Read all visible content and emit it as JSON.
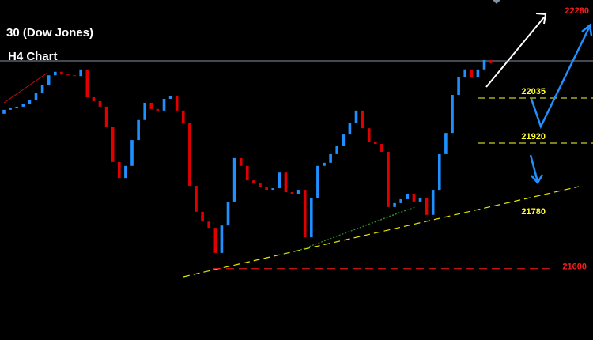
{
  "chart_data": {
    "type": "candlestick",
    "title": "30 (Dow Jones)",
    "subtitle": "H4 Chart",
    "ylim": [
      21418,
      22285
    ],
    "up_color": "#1e90ff",
    "down_color": "#e00000",
    "open": [
      21995,
      22005,
      22009,
      22013,
      22019,
      22029,
      22047,
      22069,
      22093,
      22102,
      22095,
      22093,
      22091,
      22108,
      22037,
      22027,
      22013,
      21962,
      21872,
      21831,
      21862,
      21928,
      21979,
      22023,
      22007,
      22003,
      22033,
      22040,
      22003,
      21972,
      21811,
      21745,
      21720,
      21704,
      21640,
      21710,
      21771,
      21882,
      21862,
      21825,
      21817,
      21809,
      21801,
      21805,
      21845,
      21795,
      21791,
      21801,
      21680,
      21781,
      21862,
      21870,
      21892,
      21912,
      21942,
      21972,
      22003,
      21958,
      21922,
      21918,
      21898,
      21757,
      21767,
      21777,
      21791,
      21771,
      21781,
      21737,
      21801,
      21892,
      21946,
      22043,
      22089,
      22108,
      22089,
      22108,
      22132
    ],
    "close": [
      22005,
      22009,
      22013,
      22019,
      22029,
      22047,
      22069,
      22093,
      22102,
      22095,
      22093,
      22091,
      22108,
      22037,
      22027,
      22013,
      21962,
      21872,
      21831,
      21862,
      21928,
      21979,
      22023,
      22007,
      22003,
      22033,
      22040,
      22003,
      21972,
      21811,
      21745,
      21720,
      21704,
      21640,
      21710,
      21771,
      21882,
      21862,
      21825,
      21817,
      21809,
      21801,
      21805,
      21845,
      21795,
      21791,
      21801,
      21680,
      21781,
      21862,
      21870,
      21892,
      21912,
      21942,
      21972,
      22003,
      21958,
      21922,
      21918,
      21898,
      21757,
      21767,
      21777,
      21791,
      21771,
      21781,
      21737,
      21801,
      21892,
      21946,
      22043,
      22089,
      22108,
      22089,
      22108,
      22132,
      22124
    ],
    "levels": [
      {
        "value": 22280,
        "color": "#ff1a1a",
        "line": false
      },
      {
        "value": 22035,
        "color": "#ffff33",
        "line": true
      },
      {
        "value": 21920,
        "color": "#ffff33",
        "line": true
      },
      {
        "value": 21780,
        "color": "#ffff33",
        "line": false
      },
      {
        "value": 21600,
        "color": "#ff1a1a",
        "line": true
      }
    ]
  }
}
